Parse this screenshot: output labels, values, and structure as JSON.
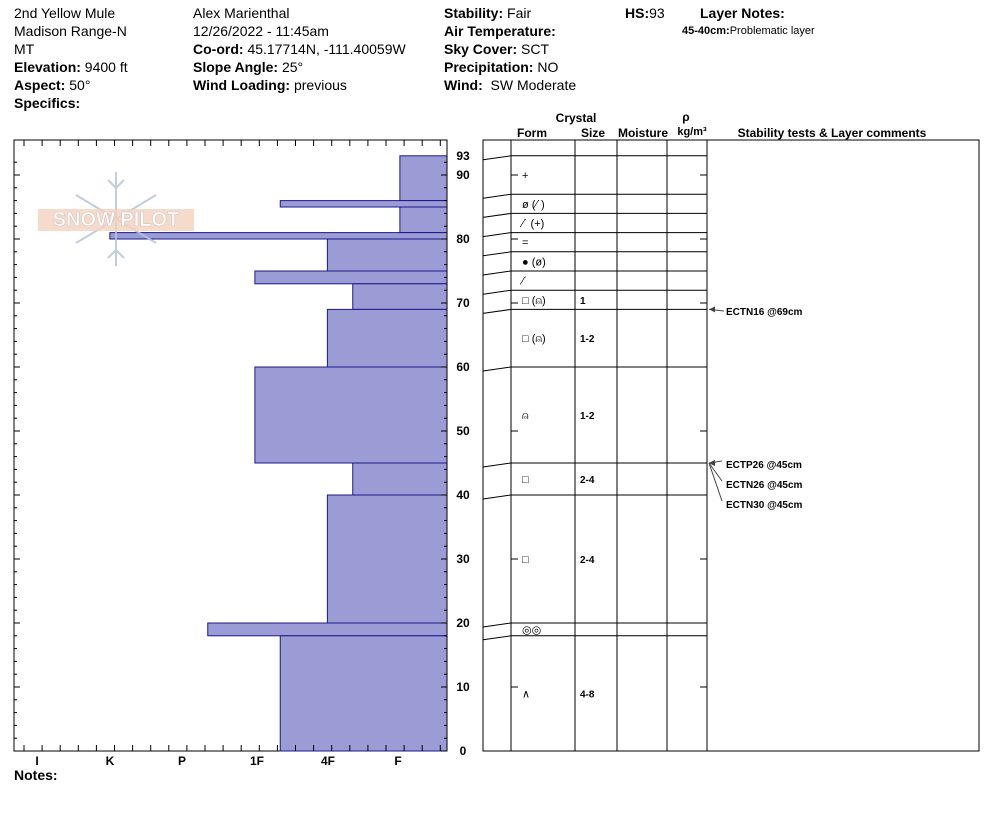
{
  "header": {
    "location": "2nd Yellow Mule",
    "range": "Madison Range-N",
    "state": "MT",
    "elevation_label": "Elevation:",
    "elevation": "9400 ft",
    "aspect_label": "Aspect:",
    "aspect": "50°",
    "specifics_label": "Specifics:",
    "observer": "Alex Marienthal",
    "datetime": "12/26/2022 - 11:45am",
    "coord_label": "Co-ord:",
    "coord": "45.17714N, -111.40059W",
    "slope_label": "Slope Angle:",
    "slope": "25°",
    "windload_label": "Wind Loading:",
    "windload": "previous",
    "stability_label": "Stability:",
    "stability": "Fair",
    "airtemp_label": "Air Temperature:",
    "sky_label": "Sky Cover:",
    "sky": "SCT",
    "precip_label": "Precipitation:",
    "precip": "NO",
    "wind_label": "Wind:",
    "wind": "SW Moderate",
    "hs_label": "HS:",
    "hs": "93",
    "layernotes_label": "Layer Notes:",
    "layernote_depth": "45-40cm:",
    "layernote_text": "Problematic layer",
    "notes_label": "Notes:"
  },
  "logo_text": "SNOW PILOT",
  "colors": {
    "bar_fill": "#9b9bd6",
    "bar_stroke": "#1a1a8c"
  },
  "columns": {
    "crystal": "Crystal",
    "form": "Form",
    "size": "Size",
    "moisture": "Moisture",
    "rho": "ρ",
    "density": "kg/m³",
    "comments": "Stability tests & Layer comments"
  },
  "chart_data": {
    "type": "bar",
    "orientation": "horizontal",
    "title": "",
    "xlabel": "",
    "ylabel": "",
    "x_tick_labels": [
      "I",
      "K",
      "P",
      "1F",
      "4F",
      "F"
    ],
    "y_ticks": [
      0,
      10,
      20,
      30,
      40,
      50,
      60,
      70,
      80,
      90
    ],
    "y_top_label": "93",
    "ylim": [
      0,
      93
    ],
    "hardness_scale_note": "F=1, 4F=2, 1F=3, P=4, K=5, I=6",
    "layers": [
      {
        "top": 93,
        "bottom": 86,
        "hardness": 0.65
      },
      {
        "top": 86,
        "bottom": 85,
        "hardness": 2.3
      },
      {
        "top": 85,
        "bottom": 81,
        "hardness": 0.65
      },
      {
        "top": 81,
        "bottom": 80,
        "hardness": 4.65
      },
      {
        "top": 80,
        "bottom": 75,
        "hardness": 1.65
      },
      {
        "top": 75,
        "bottom": 73,
        "hardness": 2.65
      },
      {
        "top": 73,
        "bottom": 69,
        "hardness": 1.3
      },
      {
        "top": 69,
        "bottom": 60,
        "hardness": 1.65
      },
      {
        "top": 60,
        "bottom": 45,
        "hardness": 2.65
      },
      {
        "top": 45,
        "bottom": 40,
        "hardness": 1.3
      },
      {
        "top": 40,
        "bottom": 20,
        "hardness": 1.65
      },
      {
        "top": 20,
        "bottom": 18,
        "hardness": 3.3
      },
      {
        "top": 18,
        "bottom": 0,
        "hardness": 2.3
      }
    ]
  },
  "profile_rows": [
    {
      "top": 93,
      "bottom": 87,
      "form": "+",
      "size": ""
    },
    {
      "top": 87,
      "bottom": 84,
      "form": "ø (⁄˙)",
      "size": ""
    },
    {
      "top": 84,
      "bottom": 81,
      "form": "⁄˙ (+)",
      "size": ""
    },
    {
      "top": 81,
      "bottom": 78,
      "form": "=",
      "size": ""
    },
    {
      "top": 78,
      "bottom": 75,
      "form": "● (ø)",
      "size": ""
    },
    {
      "top": 75,
      "bottom": 72,
      "form": "⁄˙",
      "size": ""
    },
    {
      "top": 72,
      "bottom": 69,
      "form": "□ (⍝)",
      "size": "1"
    },
    {
      "top": 69,
      "bottom": 60,
      "form": "□ (⍝)",
      "size": "1-2"
    },
    {
      "top": 60,
      "bottom": 45,
      "form": "⍝",
      "size": "1-2"
    },
    {
      "top": 45,
      "bottom": 40,
      "form": "□",
      "size": "2-4"
    },
    {
      "top": 40,
      "bottom": 20,
      "form": "□",
      "size": "2-4"
    },
    {
      "top": 20,
      "bottom": 18,
      "form": "◎◎",
      "size": ""
    },
    {
      "top": 18,
      "bottom": 0,
      "form": "∧",
      "size": "4-8"
    }
  ],
  "stability_tests": [
    {
      "label": "ECTN16 @69cm",
      "depth": 69
    },
    {
      "label": "ECTP26 @45cm",
      "depth": 45
    },
    {
      "label": "ECTN26 @45cm",
      "depth": 45
    },
    {
      "label": "ECTN30 @45cm",
      "depth": 45
    }
  ]
}
